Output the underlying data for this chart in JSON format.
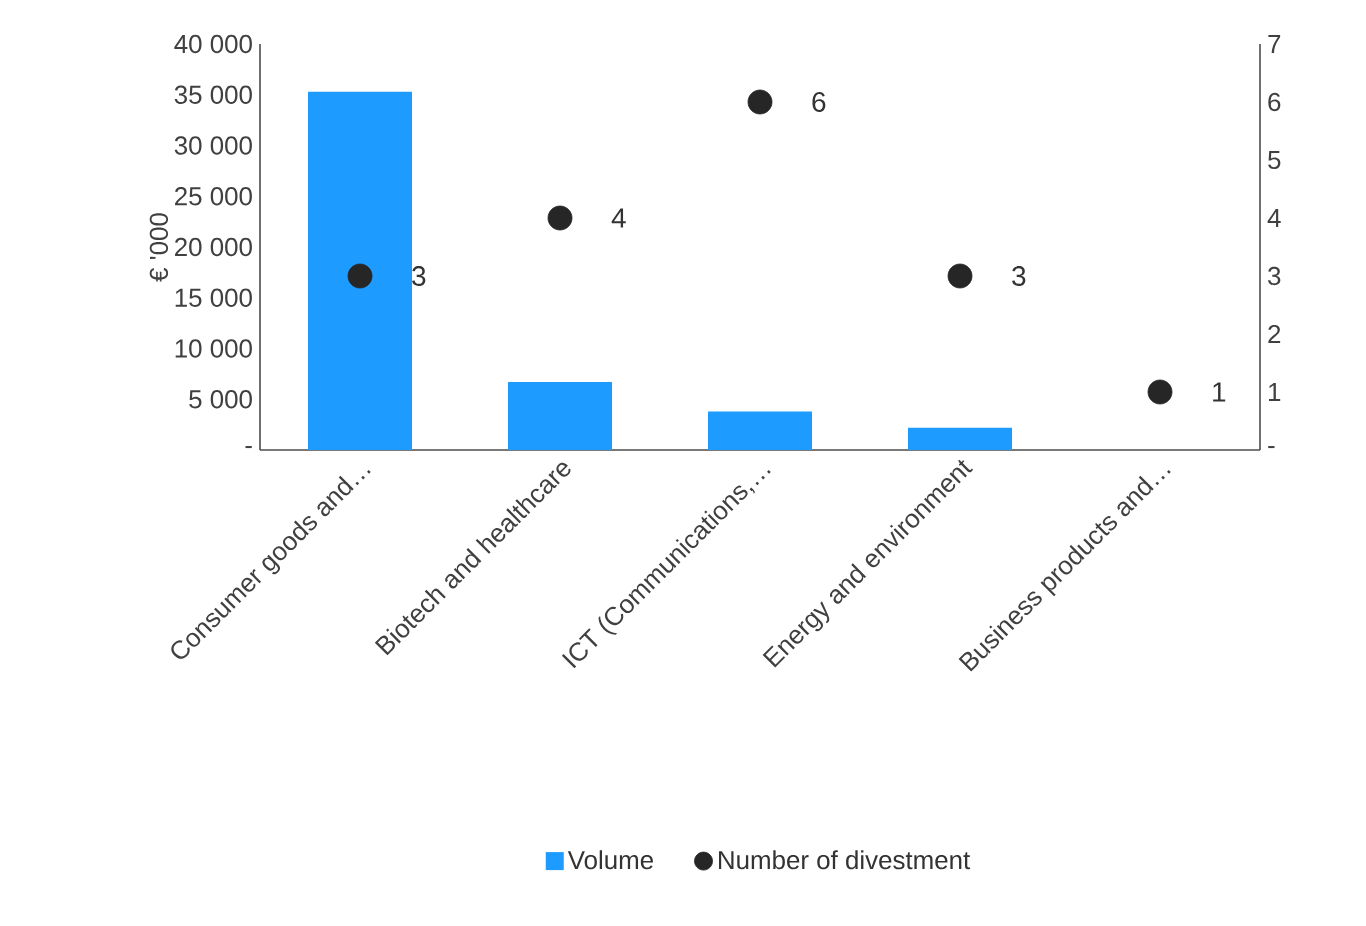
{
  "chart_data": {
    "type": "bar",
    "ylabel": "€ '000",
    "categories": [
      "Consumer goods and…",
      "Biotech and healthcare",
      "ICT (Communications,…",
      "Energy and environment",
      "Business products and…"
    ],
    "series": [
      {
        "name": "Volume",
        "color": "#1e9bff",
        "values": [
          35300,
          6700,
          3800,
          2200,
          0
        ]
      },
      {
        "name": "Number of divestment",
        "type": "scatter",
        "axis": "y2",
        "color": "#262626",
        "marker": "circle",
        "values": [
          3,
          4,
          6,
          3,
          1
        ],
        "value_labels": [
          "3",
          "4",
          "6",
          "3",
          "1"
        ]
      }
    ],
    "ylim": [
      0,
      40000
    ],
    "yticks": [
      {
        "value": 0,
        "label": "-"
      },
      {
        "value": 5000,
        "label": "5 000"
      },
      {
        "value": 10000,
        "label": "10 000"
      },
      {
        "value": 15000,
        "label": "15 000"
      },
      {
        "value": 20000,
        "label": "20 000"
      },
      {
        "value": 25000,
        "label": "25 000"
      },
      {
        "value": 30000,
        "label": "30 000"
      },
      {
        "value": 35000,
        "label": "35 000"
      },
      {
        "value": 40000,
        "label": "40 000"
      }
    ],
    "y2lim": [
      0,
      7
    ],
    "y2ticks": [
      {
        "value": 0,
        "label": "-"
      },
      1,
      2,
      3,
      4,
      5,
      6,
      7
    ],
    "grid": false,
    "legend": "bottom"
  }
}
